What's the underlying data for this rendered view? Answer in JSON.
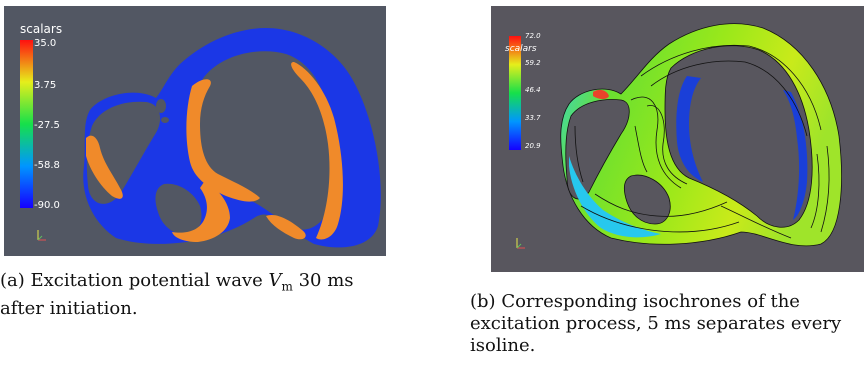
{
  "figure_a": {
    "colorbar_title": "scalars",
    "ticks": [
      "35.0",
      "3.75",
      "-27.5",
      "-58.8",
      "-90.0"
    ],
    "caption_prefix": "(a)",
    "caption_text": "Excitation potential wave",
    "caption_var": "V",
    "caption_sub": "m",
    "caption_tail": "30 ms after initiation."
  },
  "figure_b": {
    "colorbar_title": "scalars",
    "ticks": [
      "72.0",
      "59.2",
      "46.4",
      "33.7",
      "20.9"
    ],
    "caption_prefix": "(b)",
    "caption_text": "Corresponding isochrones of the excitation process, 5 ms separates every isoline."
  },
  "colors": {
    "panel_a_bg": "#525763",
    "panel_b_bg": "#58565e",
    "tissue_rest": "#1b37e6",
    "wavefront": "#f08a2a"
  }
}
